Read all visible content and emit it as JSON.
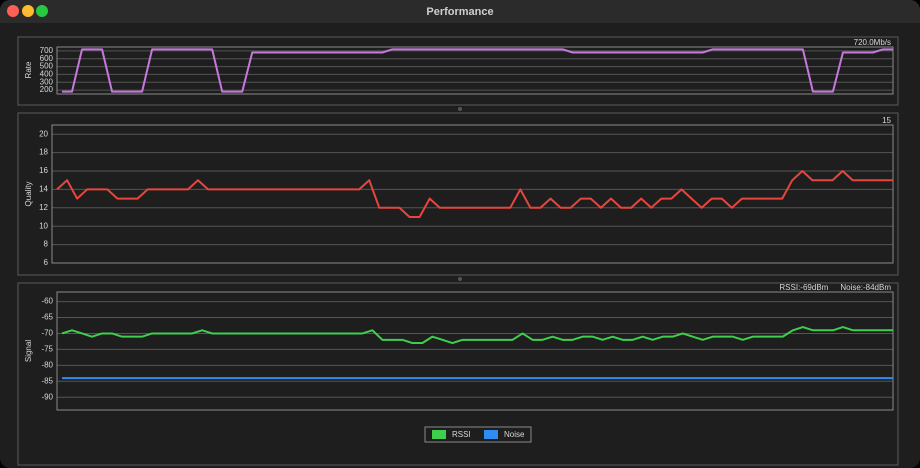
{
  "window": {
    "title": "Performance"
  },
  "chart_data": [
    {
      "type": "line",
      "y_label": "Rate",
      "annotations": [
        "720.0Mb/s"
      ],
      "ylim": [
        150,
        750
      ],
      "yticks": [
        200,
        300,
        400,
        500,
        600,
        700
      ],
      "grid": true,
      "series": [
        {
          "color": "#c678dd",
          "values": [
            180,
            180,
            720,
            720,
            720,
            180,
            180,
            180,
            180,
            720,
            720,
            720,
            720,
            720,
            720,
            720,
            180,
            180,
            180,
            680,
            680,
            680,
            680,
            680,
            680,
            680,
            680,
            680,
            680,
            680,
            680,
            680,
            680,
            720,
            720,
            720,
            720,
            720,
            720,
            720,
            720,
            720,
            720,
            720,
            720,
            720,
            720,
            720,
            720,
            720,
            720,
            680,
            680,
            680,
            680,
            680,
            680,
            680,
            680,
            680,
            680,
            680,
            680,
            680,
            680,
            720,
            720,
            720,
            720,
            720,
            720,
            720,
            720,
            720,
            720,
            180,
            180,
            180,
            680,
            680,
            680,
            680,
            720,
            720
          ]
        }
      ]
    },
    {
      "type": "line",
      "y_label": "Quality",
      "annotations": [
        "15"
      ],
      "ylim": [
        6,
        21
      ],
      "yticks": [
        6,
        8,
        10,
        12,
        14,
        16,
        18,
        20
      ],
      "grid": true,
      "series": [
        {
          "color": "#e8453c",
          "values": [
            14,
            15,
            13,
            14,
            14,
            14,
            13,
            13,
            13,
            14,
            14,
            14,
            14,
            14,
            15,
            14,
            14,
            14,
            14,
            14,
            14,
            14,
            14,
            14,
            14,
            14,
            14,
            14,
            14,
            14,
            14,
            15,
            12,
            12,
            12,
            11,
            11,
            13,
            12,
            12,
            12,
            12,
            12,
            12,
            12,
            12,
            14,
            12,
            12,
            13,
            12,
            12,
            13,
            13,
            12,
            13,
            12,
            12,
            13,
            12,
            13,
            13,
            14,
            13,
            12,
            13,
            13,
            12,
            13,
            13,
            13,
            13,
            13,
            15,
            16,
            15,
            15,
            15,
            16,
            15,
            15,
            15,
            15,
            15
          ]
        }
      ]
    },
    {
      "type": "line",
      "y_label": "Signal",
      "annotations": [
        "RSSI:-69dBm",
        "Noise:-84dBm"
      ],
      "ylim": [
        -94,
        -57
      ],
      "yticks": [
        -90,
        -85,
        -80,
        -75,
        -70,
        -65,
        -60
      ],
      "grid": true,
      "legend": "bottom",
      "series": [
        {
          "name": "RSSI",
          "color": "#3ecf4c",
          "values": [
            -70,
            -69,
            -70,
            -71,
            -70,
            -70,
            -71,
            -71,
            -71,
            -70,
            -70,
            -70,
            -70,
            -70,
            -69,
            -70,
            -70,
            -70,
            -70,
            -70,
            -70,
            -70,
            -70,
            -70,
            -70,
            -70,
            -70,
            -70,
            -70,
            -70,
            -70,
            -69,
            -72,
            -72,
            -72,
            -73,
            -73,
            -71,
            -72,
            -73,
            -72,
            -72,
            -72,
            -72,
            -72,
            -72,
            -70,
            -72,
            -72,
            -71,
            -72,
            -72,
            -71,
            -71,
            -72,
            -71,
            -72,
            -72,
            -71,
            -72,
            -71,
            -71,
            -70,
            -71,
            -72,
            -71,
            -71,
            -71,
            -72,
            -71,
            -71,
            -71,
            -71,
            -69,
            -68,
            -69,
            -69,
            -69,
            -68,
            -69,
            -69,
            -69,
            -69,
            -69
          ]
        },
        {
          "name": "Noise",
          "color": "#2f8cf0",
          "values": [
            -84,
            -84,
            -84,
            -84,
            -84,
            -84,
            -84,
            -84,
            -84,
            -84,
            -84,
            -84,
            -84,
            -84,
            -84,
            -84,
            -84,
            -84,
            -84,
            -84,
            -84,
            -84,
            -84,
            -84,
            -84,
            -84,
            -84,
            -84,
            -84,
            -84,
            -84,
            -84,
            -84,
            -84,
            -84,
            -84,
            -84,
            -84,
            -84,
            -84,
            -84,
            -84,
            -84,
            -84,
            -84,
            -84,
            -84,
            -84,
            -84,
            -84,
            -84,
            -84,
            -84,
            -84,
            -84,
            -84,
            -84,
            -84,
            -84,
            -84,
            -84,
            -84,
            -84,
            -84,
            -84,
            -84,
            -84,
            -84,
            -84,
            -84,
            -84,
            -84,
            -84,
            -84,
            -84,
            -84,
            -84,
            -84,
            -84,
            -84,
            -84,
            -84,
            -84,
            -84
          ]
        }
      ]
    }
  ]
}
